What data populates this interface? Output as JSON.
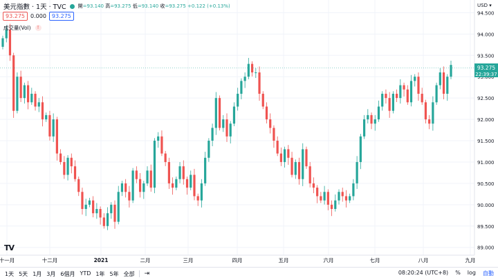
{
  "header": {
    "symbol": "美元指數 · 1天 · TVC",
    "open_label": "開",
    "open": "93.140",
    "high_label": "高",
    "high": "93.275",
    "low_label": "低",
    "low": "93.140",
    "close_label": "收",
    "close": "93.275",
    "change": "+0.122 (+0.13%)",
    "bid": "93.275",
    "spread": "0.000",
    "ask": "93.275",
    "volume_label": "成交量(Vol)",
    "warning": "!",
    "currency": "USD"
  },
  "price_axis": {
    "ticks": [
      "94.500",
      "94.000",
      "93.500",
      "93.000",
      "92.500",
      "92.000",
      "91.500",
      "91.000",
      "90.500",
      "90.000",
      "89.500",
      "89.000"
    ],
    "last_price": "93.275",
    "countdown": "22:39:37"
  },
  "time_axis": {
    "ticks": [
      "十一月",
      "十二月",
      "2021",
      "二月",
      "三月",
      "四月",
      "五月",
      "六月",
      "七月",
      "八月",
      "九月"
    ]
  },
  "toolbar": {
    "ranges": [
      "1天",
      "5天",
      "1月",
      "3月",
      "6個月",
      "YTD",
      "1年",
      "5年",
      "全部"
    ],
    "time": "08:20:24 (UTC+8)",
    "percent": "%",
    "log": "log",
    "auto": "自動"
  },
  "colors": {
    "up": "#26a69a",
    "down": "#ef5350",
    "accent": "#2962ff"
  },
  "chart_data": {
    "type": "candlestick",
    "y_range": [
      88.85,
      94.7
    ],
    "closes": [
      93.9,
      94.1,
      93.5,
      92.2,
      93.0,
      92.5,
      92.8,
      92.4,
      92.6,
      92.3,
      92.4,
      92.0,
      92.1,
      91.6,
      92.0,
      91.2,
      91.0,
      90.7,
      91.1,
      90.9,
      90.6,
      90.3,
      89.9,
      90.0,
      90.1,
      89.8,
      89.9,
      89.7,
      89.5,
      89.8,
      90.0,
      89.6,
      90.3,
      90.5,
      90.3,
      90.1,
      90.8,
      90.6,
      90.3,
      90.5,
      90.8,
      90.4,
      91.5,
      91.6,
      91.2,
      91.0,
      90.5,
      90.4,
      90.6,
      90.9,
      90.6,
      90.4,
      90.7,
      90.2,
      90.1,
      90.5,
      91.1,
      91.5,
      91.8,
      92.5,
      91.8,
      92.0,
      91.6,
      91.9,
      92.3,
      92.6,
      92.9,
      93.0,
      93.3,
      93.1,
      93.1,
      92.6,
      92.3,
      92.0,
      91.8,
      91.5,
      91.2,
      91.0,
      91.3,
      91.1,
      90.7,
      91.0,
      90.6,
      91.3,
      90.9,
      90.5,
      90.4,
      90.2,
      90.1,
      90.3,
      90.0,
      89.9,
      90.1,
      90.3,
      90.2,
      90.1,
      90.2,
      90.5,
      91.0,
      91.6,
      92.0,
      92.1,
      91.9,
      92.0,
      92.3,
      92.6,
      92.5,
      92.2,
      92.6,
      92.5,
      92.8,
      92.7,
      92.4,
      92.9,
      93.0,
      92.6,
      92.4,
      92.0,
      91.9,
      92.4,
      92.8,
      93.1,
      92.6,
      93.0,
      93.275
    ]
  }
}
